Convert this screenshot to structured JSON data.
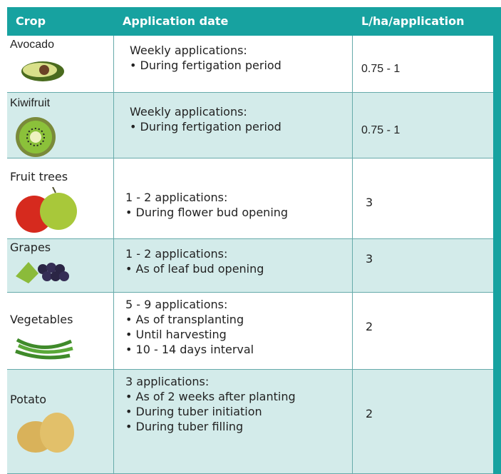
{
  "table": {
    "header": [
      "Crop",
      "Application date",
      "L/ha/application"
    ],
    "rows": [
      {
        "crop": "Avocado",
        "lines": [
          "Weekly applications:",
          "• During fertigation period"
        ],
        "rate": "0.75 - 1"
      },
      {
        "crop": "Kiwifruit",
        "lines": [
          "Weekly applications:",
          "• During fertigation period"
        ],
        "rate": "0.75 - 1"
      },
      {
        "crop": "Fruit trees",
        "lines": [
          "1 - 2 applications:",
          "• During flower bud opening"
        ],
        "rate": "3"
      },
      {
        "crop": "Grapes",
        "lines": [
          "1 - 2 applications:",
          "• As of leaf bud opening"
        ],
        "rate": "3"
      },
      {
        "crop": "Vegetables",
        "lines": [
          "5 - 9 applications:",
          "• As of transplanting",
          "• Until harvesting",
          "• 10 - 14 days interval"
        ],
        "rate": "2"
      },
      {
        "crop": "Potato",
        "lines": [
          "3 applications:",
          "• As of 2 weeks after planting",
          "• During tuber initiation",
          "• During tuber filling"
        ],
        "rate": "2"
      }
    ]
  }
}
